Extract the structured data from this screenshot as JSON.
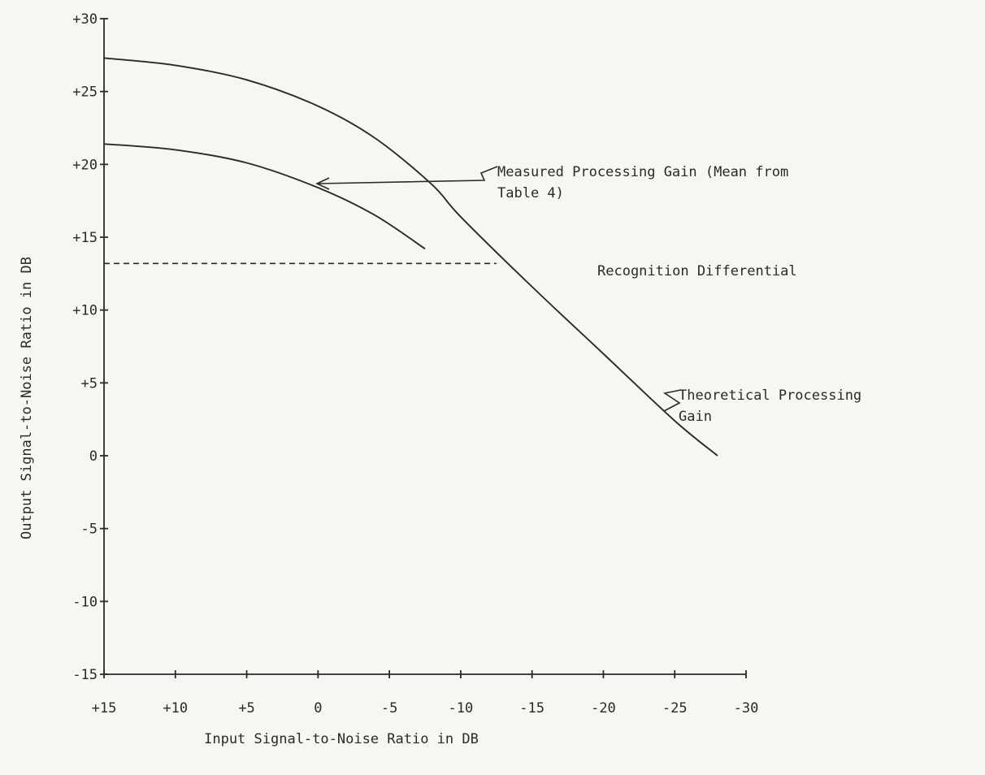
{
  "chart_data": {
    "type": "line",
    "title": "",
    "xlabel": "Input Signal-to-Noise Ratio in DB",
    "ylabel": "Output Signal-to-Noise Ratio in DB",
    "x_tick_labels": [
      "+15",
      "+10",
      "+5",
      "0",
      "-5",
      "-10",
      "-15",
      "-20",
      "-25",
      "-30"
    ],
    "x_ticks": [
      15,
      10,
      5,
      0,
      -5,
      -10,
      -15,
      -20,
      -25,
      -30
    ],
    "y_tick_labels": [
      "+30",
      "+25",
      "+20",
      "+15",
      "+10",
      "+5",
      "0",
      "-5",
      "-10",
      "-15"
    ],
    "y_ticks": [
      30,
      25,
      20,
      15,
      10,
      5,
      0,
      -5,
      -10,
      -15
    ],
    "xlim": [
      15,
      -30
    ],
    "ylim": [
      -15,
      30
    ],
    "grid": false,
    "series": [
      {
        "name": "Theoretical Processing Gain",
        "x": [
          15,
          10,
          5,
          0,
          -4,
          -8,
          -10,
          -15,
          -20,
          -25,
          -28
        ],
        "y": [
          27.3,
          26.8,
          25.8,
          24.0,
          21.8,
          18.6,
          16.4,
          11.6,
          7.0,
          2.4,
          0
        ]
      },
      {
        "name": "Measured Processing Gain (Mean from Table 4)",
        "x": [
          15,
          10,
          5,
          0,
          -4,
          -7.5
        ],
        "y": [
          21.4,
          21.0,
          20.1,
          18.4,
          16.5,
          14.2
        ]
      }
    ],
    "reference_line": {
      "name": "Recognition Differential",
      "y": 13.2,
      "x_start": 15,
      "x_end": -12.5
    },
    "annotations": {
      "measured_line1": "Measured Processing Gain (Mean from",
      "measured_line2": "Table 4)",
      "theoretical_line1": "Theoretical Processing",
      "theoretical_line2": "Gain",
      "recognition": "Recognition Differential"
    }
  }
}
